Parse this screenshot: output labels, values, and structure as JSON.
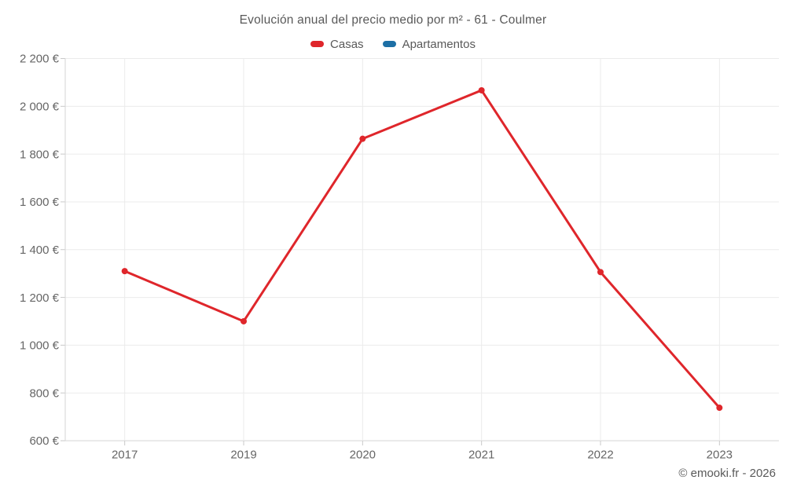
{
  "chart": {
    "title": "Evolución anual del precio medio por m² - 61 - Coulmer",
    "footer": "© emooki.fr - 2026"
  },
  "chart_data": {
    "type": "line",
    "title": "Evolución anual del precio medio por m² - 61 - Coulmer",
    "categories": [
      "2017",
      "2019",
      "2020",
      "2021",
      "2022",
      "2023"
    ],
    "series": [
      {
        "name": "Casas",
        "color": "#df262b",
        "values": [
          1310,
          1100,
          1864,
          2067,
          1306,
          738
        ]
      },
      {
        "name": "Apartamentos",
        "color": "#1d6fa5",
        "values": []
      }
    ],
    "xlabel": "",
    "ylabel": "",
    "ylim": [
      600,
      2200
    ],
    "y_tick_step": 200,
    "y_tick_suffix": " €",
    "grid": true,
    "legend_position": "top",
    "footer": "© emooki.fr - 2026",
    "style": {
      "text_color": "#595959",
      "tick_text_color": "#666666",
      "grid_color": "#ebebeb",
      "axis_color": "#d6d6d6",
      "tick_mark_color": "#c9c9c9",
      "point_radius": 4,
      "line_width": 3
    }
  }
}
